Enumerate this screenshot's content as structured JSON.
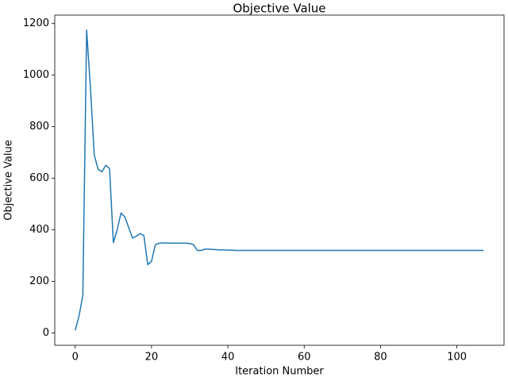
{
  "chart_data": {
    "type": "line",
    "title": "Objective Value",
    "xlabel": "Iteration Number",
    "ylabel": "Objective Value",
    "x": [
      0,
      1,
      2,
      3,
      4,
      5,
      6,
      7,
      8,
      9,
      10,
      11,
      12,
      13,
      14,
      15,
      16,
      17,
      18,
      19,
      20,
      21,
      22,
      23,
      24,
      25,
      26,
      27,
      28,
      29,
      30,
      31,
      32,
      33,
      34,
      35,
      36,
      37,
      38,
      39,
      40,
      41,
      42,
      43,
      44,
      45,
      46,
      47,
      48,
      49,
      50,
      51,
      52,
      53,
      54,
      55,
      56,
      57,
      58,
      59,
      60,
      61,
      62,
      63,
      64,
      65,
      66,
      67,
      68,
      69,
      70,
      71,
      72,
      73,
      74,
      75,
      76,
      77,
      78,
      79,
      80,
      81,
      82,
      83,
      84,
      85,
      86,
      87,
      88,
      89,
      90,
      91,
      92,
      93,
      94,
      95,
      96,
      97,
      98,
      99,
      100,
      101,
      102,
      103,
      104,
      105,
      106,
      107
    ],
    "series": [
      {
        "color": "#1f77b4",
        "values": [
          10,
          65,
          145,
          1175,
          950,
          690,
          635,
          625,
          650,
          638,
          350,
          400,
          465,
          450,
          410,
          368,
          375,
          385,
          378,
          265,
          278,
          342,
          348,
          349,
          349,
          348,
          348,
          348,
          348,
          348,
          347,
          342,
          320,
          320,
          325,
          325,
          324,
          323,
          322,
          322,
          321,
          321,
          320,
          320,
          320,
          320,
          320,
          320,
          320,
          320,
          320,
          320,
          320,
          320,
          320,
          320,
          320,
          320,
          320,
          320,
          320,
          320,
          320,
          320,
          320,
          320,
          320,
          320,
          320,
          320,
          320,
          320,
          320,
          320,
          320,
          320,
          320,
          320,
          320,
          320,
          320,
          320,
          320,
          320,
          320,
          320,
          320,
          320,
          320,
          320,
          320,
          320,
          320,
          320,
          320,
          320,
          320,
          320,
          320,
          320,
          320,
          320,
          320,
          320,
          320,
          320,
          320,
          320
        ]
      }
    ],
    "xlim": [
      -5.35,
      112.35
    ],
    "ylim": [
      -48,
      1233
    ],
    "xticks": [
      0,
      20,
      40,
      60,
      80,
      100
    ],
    "yticks": [
      0,
      200,
      400,
      600,
      800,
      1000,
      1200
    ]
  }
}
